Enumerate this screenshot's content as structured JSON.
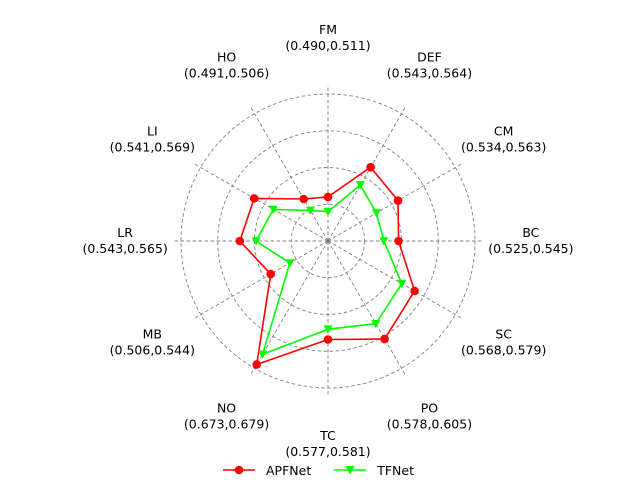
{
  "chart_data": {
    "type": "radar",
    "title": "",
    "axes": [
      {
        "name": "FM",
        "range": "(0.490,0.511)"
      },
      {
        "name": "DEF",
        "range": "(0.543,0.564)"
      },
      {
        "name": "CM",
        "range": "(0.534,0.563)"
      },
      {
        "name": "BC",
        "range": "(0.525,0.545)"
      },
      {
        "name": "SC",
        "range": "(0.568,0.579)"
      },
      {
        "name": "PO",
        "range": "(0.578,0.605)"
      },
      {
        "name": "TC",
        "range": "(0.577,0.581)"
      },
      {
        "name": "NO",
        "range": "(0.673,0.679)"
      },
      {
        "name": "MB",
        "range": "(0.506,0.544)"
      },
      {
        "name": "LR",
        "range": "(0.543,0.565)"
      },
      {
        "name": "LI",
        "range": "(0.541,0.569)"
      },
      {
        "name": "HO",
        "range": "(0.491,0.506)"
      }
    ],
    "series": [
      {
        "name": "APFNet",
        "color": "#ff0000",
        "marker": "circle",
        "values": [
          0.511,
          0.564,
          0.563,
          0.545,
          0.579,
          0.605,
          0.581,
          0.679,
          0.544,
          0.565,
          0.569,
          0.506
        ]
      },
      {
        "name": "TFNet",
        "color": "#00ff00",
        "marker": "triangle-down",
        "values": [
          0.49,
          0.543,
          0.534,
          0.525,
          0.568,
          0.578,
          0.577,
          0.673,
          0.506,
          0.543,
          0.541,
          0.491
        ]
      }
    ],
    "radial_normalized": {
      "APFNet": [
        0.3,
        0.58,
        0.55,
        0.48,
        0.68,
        0.77,
        0.67,
        0.97,
        0.45,
        0.6,
        0.58,
        0.33
      ],
      "TFNet": [
        0.2,
        0.44,
        0.38,
        0.38,
        0.58,
        0.65,
        0.6,
        0.89,
        0.3,
        0.49,
        0.43,
        0.24
      ]
    },
    "grid": true,
    "legend_position": "bottom-center"
  }
}
